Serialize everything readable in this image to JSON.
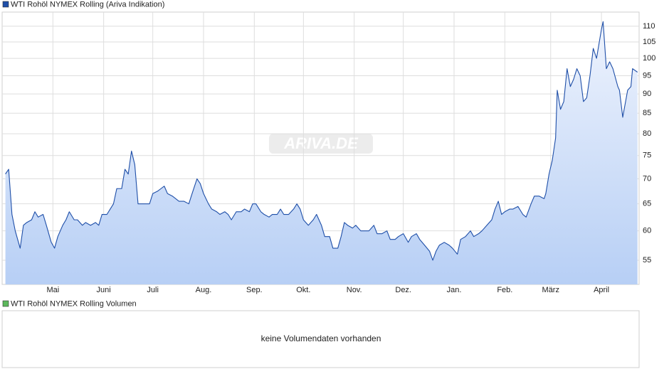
{
  "chart_data": {
    "type": "area",
    "title": "WTI Rohöl NYMEX Rolling (Ariva Indikation)",
    "watermark": "ARIVA.DE",
    "log_scale": true,
    "grid": true,
    "legend": "top-left",
    "xlim": [
      -1,
      388
    ],
    "xticks": [
      {
        "value": 30,
        "label": "Mai"
      },
      {
        "value": 61,
        "label": "Juni"
      },
      {
        "value": 91,
        "label": "Juli"
      },
      {
        "value": 122,
        "label": "Aug."
      },
      {
        "value": 153,
        "label": "Sep."
      },
      {
        "value": 183,
        "label": "Okt."
      },
      {
        "value": 214,
        "label": "Nov."
      },
      {
        "value": 244,
        "label": "Dez."
      },
      {
        "value": 275,
        "label": "Jan."
      },
      {
        "value": 306,
        "label": "Feb."
      },
      {
        "value": 334,
        "label": "März"
      },
      {
        "value": 365,
        "label": "April"
      }
    ],
    "ylim": [
      51.2,
      114.7
    ],
    "yticks": [
      55,
      60,
      65,
      70,
      75,
      80,
      85,
      90,
      95,
      100,
      105,
      110
    ],
    "x": [
      1,
      3,
      5,
      7,
      10,
      12,
      14,
      17,
      19,
      21,
      24,
      26,
      29,
      31,
      33,
      36,
      38,
      40,
      43,
      45,
      48,
      50,
      53,
      56,
      58,
      60,
      63,
      65,
      67,
      69,
      72,
      74,
      76,
      78,
      80,
      82,
      84,
      87,
      89,
      91,
      94,
      96,
      98,
      100,
      103,
      105,
      107,
      110,
      113,
      115,
      118,
      120,
      122,
      125,
      127,
      130,
      132,
      135,
      137,
      139,
      142,
      145,
      147,
      150,
      152,
      154,
      157,
      159,
      162,
      164,
      167,
      169,
      171,
      174,
      177,
      179,
      181,
      183,
      186,
      189,
      191,
      194,
      196,
      199,
      201,
      204,
      206,
      208,
      210,
      213,
      215,
      218,
      221,
      223,
      226,
      228,
      231,
      234,
      236,
      239,
      241,
      244,
      247,
      249,
      252,
      254,
      257,
      260,
      262,
      264,
      266,
      269,
      272,
      274,
      277,
      279,
      282,
      285,
      287,
      290,
      292,
      295,
      298,
      300,
      302,
      304,
      306,
      309,
      311,
      314,
      317,
      319,
      322,
      324,
      327,
      330,
      331,
      333,
      335,
      337,
      338,
      340,
      342,
      344,
      346,
      348,
      350,
      352,
      354,
      356,
      358,
      360,
      362,
      365,
      366,
      368,
      370,
      372,
      375,
      376,
      378,
      381,
      383,
      384,
      387
    ],
    "series": [
      {
        "name": "WTI Rohöl NYMEX Rolling (Ariva Indikation)",
        "color": "#1f4fa8",
        "values": [
          71,
          72,
          63,
          60,
          57,
          61,
          61.5,
          62,
          63.5,
          62.5,
          63,
          61,
          58,
          57,
          59,
          61,
          62,
          63.5,
          62,
          62,
          61,
          61.5,
          61,
          61.5,
          61,
          63,
          63,
          64,
          65,
          68,
          68,
          72,
          71,
          76,
          73,
          65,
          65,
          65,
          65,
          67,
          67.5,
          68,
          68.5,
          67,
          66.5,
          66,
          65.5,
          65.5,
          65,
          67,
          70,
          69,
          67,
          65,
          64,
          63.5,
          63,
          63.5,
          63,
          62,
          63.5,
          63.5,
          64,
          63.5,
          65,
          65,
          63.5,
          63,
          62.5,
          63,
          63,
          64,
          63,
          63,
          64,
          65,
          64,
          62,
          61,
          62,
          63,
          61,
          59,
          59,
          57,
          57,
          59,
          61.5,
          61,
          60.5,
          61,
          60,
          60,
          60,
          61,
          59.5,
          59.5,
          60,
          58.5,
          58.5,
          59,
          59.5,
          58,
          59,
          59.5,
          58.5,
          57.5,
          56.5,
          55,
          56.5,
          57.5,
          58,
          57.5,
          57,
          56,
          58.5,
          59,
          60,
          59,
          59.5,
          60,
          61,
          62,
          64,
          65.5,
          63,
          63.5,
          64,
          64,
          64.5,
          63,
          62.5,
          65,
          66.5,
          66.5,
          66,
          67,
          71,
          74,
          79,
          91,
          86,
          88,
          97,
          92,
          94,
          97,
          95,
          88,
          89,
          95,
          103,
          100,
          109,
          111.5,
          97,
          99,
          97,
          92,
          91,
          84,
          91,
          92,
          97,
          96
        ]
      }
    ]
  },
  "volume_panel": {
    "legend": "WTI Rohöl NYMEX Rolling Volumen",
    "color": "#5cb85c",
    "message": "keine Volumendaten vorhanden"
  }
}
